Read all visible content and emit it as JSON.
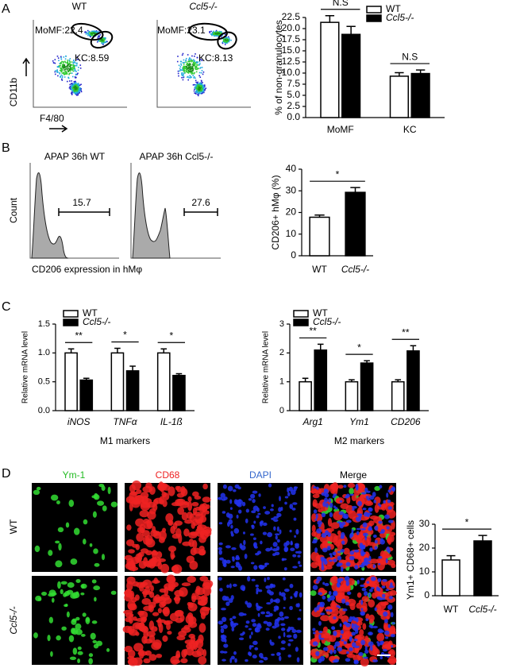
{
  "panels": {
    "a": "A",
    "b": "B",
    "c": "C",
    "d": "D"
  },
  "flow": {
    "wt_title": "WT",
    "ko_title": "Ccl5-/-",
    "wt_momf": "MoMF:22.4",
    "wt_kc": "KC:8.59",
    "ko_momf": "MoMF:23.1",
    "ko_kc": "KC:8.13",
    "y_label": "CD11b",
    "x_label": "F4/80"
  },
  "histogram": {
    "wt_title": "APAP 36h WT",
    "ko_title": "APAP 36h Ccl5-/-",
    "wt_gate": "15.7",
    "ko_gate": "27.6",
    "y_label": "Count",
    "x_label": "CD206 expression in hMφ"
  },
  "staining": {
    "columns": [
      "Ym-1",
      "CD68",
      "DAPI",
      "Merge"
    ],
    "rows": [
      "WT",
      "Ccl5-/-"
    ]
  },
  "chart_data": [
    {
      "type": "bar",
      "categories": [
        "MoMF",
        "KC"
      ],
      "series": [
        {
          "name": "WT",
          "color": "#ffffff",
          "values": [
            21.4,
            9.3
          ],
          "errors": [
            1.5,
            0.8
          ]
        },
        {
          "name": "Ccl5-/-",
          "color": "#000000",
          "values": [
            18.7,
            9.9
          ],
          "errors": [
            1.8,
            0.8
          ]
        }
      ],
      "ylim": [
        0,
        22.5
      ],
      "yticks": [
        {
          "value": 0,
          "label": "0.0"
        },
        {
          "value": 2.5,
          "label": "2.5"
        },
        {
          "value": 5,
          "label": "5.0"
        },
        {
          "value": 7.5,
          "label": "7.5"
        },
        {
          "value": 10,
          "label": "10.0"
        },
        {
          "value": 12.5,
          "label": "12.5"
        },
        {
          "value": 15,
          "label": "15.0"
        },
        {
          "value": 17.5,
          "label": "17.5"
        },
        {
          "value": 20,
          "label": "20.0"
        },
        {
          "value": 22.5,
          "label": "22.5"
        }
      ],
      "y_label": "% of non-granulocytes",
      "significance": [
        "N.S",
        "N.S"
      ]
    },
    {
      "type": "bar",
      "categories": [
        "WT",
        "Ccl5-/-"
      ],
      "values": [
        17.8,
        29.3
      ],
      "errors": [
        1.0,
        2.2
      ],
      "colors": [
        "#ffffff",
        "#000000"
      ],
      "ylim": [
        0,
        40
      ],
      "yticks": [
        0,
        10,
        20,
        30,
        40
      ],
      "y_label": "CD206+ hMφ (%)",
      "significance": [
        "*"
      ]
    },
    {
      "type": "bar",
      "categories": [
        "iNOS",
        "TNFα",
        "IL-1ß"
      ],
      "series": [
        {
          "name": "WT",
          "color": "#ffffff",
          "values": [
            1.0,
            1.0,
            1.0
          ],
          "errors": [
            0.07,
            0.08,
            0.07
          ]
        },
        {
          "name": "Ccl5-/-",
          "color": "#000000",
          "values": [
            0.53,
            0.69,
            0.61
          ],
          "errors": [
            0.03,
            0.08,
            0.03
          ]
        }
      ],
      "ylim": [
        0,
        1.5
      ],
      "yticks": [
        {
          "value": 0,
          "label": "0.0"
        },
        {
          "value": 0.5,
          "label": "0.5"
        },
        {
          "value": 1,
          "label": "1.0"
        },
        {
          "value": 1.5,
          "label": "1.5"
        }
      ],
      "y_label": "Relative mRNA level",
      "x_label": "M1 markers",
      "significance": [
        "**",
        "*",
        "*"
      ]
    },
    {
      "type": "bar",
      "categories": [
        "Arg1",
        "Ym1",
        "CD206"
      ],
      "series": [
        {
          "name": "WT",
          "color": "#ffffff",
          "values": [
            1.0,
            1.0,
            1.0
          ],
          "errors": [
            0.12,
            0.07,
            0.07
          ]
        },
        {
          "name": "Ccl5-/-",
          "color": "#000000",
          "values": [
            2.1,
            1.65,
            2.07
          ],
          "errors": [
            0.2,
            0.08,
            0.18
          ]
        }
      ],
      "ylim": [
        0,
        3
      ],
      "yticks": [
        0,
        1,
        2,
        3
      ],
      "y_label": "Relative mRNA level",
      "x_label": "M2 markers",
      "significance": [
        "**",
        "*",
        "**"
      ]
    },
    {
      "type": "bar",
      "categories": [
        "WT",
        "Ccl5-/-"
      ],
      "values": [
        15,
        23
      ],
      "errors": [
        1.8,
        2.3
      ],
      "colors": [
        "#ffffff",
        "#000000"
      ],
      "ylim": [
        0,
        30
      ],
      "yticks": [
        0,
        10,
        20,
        30
      ],
      "y_label": "Ym1+ CD68+ cells",
      "significance": [
        "*"
      ]
    }
  ]
}
